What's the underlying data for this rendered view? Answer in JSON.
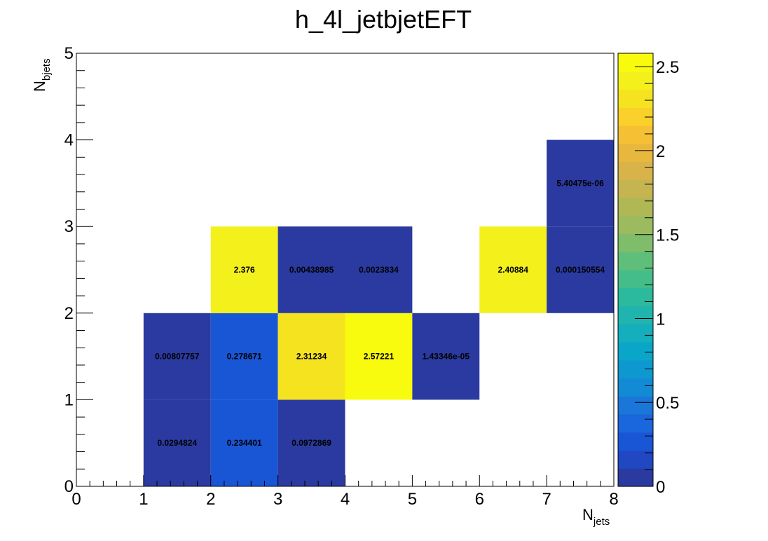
{
  "chart_data": {
    "type": "heatmap",
    "title": "h_4l_jetbjetEFT",
    "xlabel": "N",
    "xlabel_sub": "jets",
    "ylabel": "N",
    "ylabel_sub": "bjets",
    "xlim": [
      0,
      8
    ],
    "ylim": [
      0,
      5
    ],
    "x_ticks": [
      "0",
      "1",
      "2",
      "3",
      "4",
      "5",
      "6",
      "7",
      "8"
    ],
    "y_ticks": [
      "0",
      "1",
      "2",
      "3",
      "4",
      "5"
    ],
    "zlim": [
      0,
      2.58
    ],
    "z_ticks": [
      "0",
      "0.5",
      "1",
      "1.5",
      "2",
      "2.5"
    ],
    "colormap": "parula",
    "cells": [
      {
        "x": 1,
        "y": 0,
        "value": 0.0294824,
        "label": "0.0294824"
      },
      {
        "x": 2,
        "y": 0,
        "value": 0.234401,
        "label": "0.234401"
      },
      {
        "x": 3,
        "y": 0,
        "value": 0.0972869,
        "label": "0.0972869"
      },
      {
        "x": 1,
        "y": 1,
        "value": 0.00807757,
        "label": "0.00807757"
      },
      {
        "x": 2,
        "y": 1,
        "value": 0.278671,
        "label": "0.278671"
      },
      {
        "x": 3,
        "y": 1,
        "value": 2.31234,
        "label": "2.31234"
      },
      {
        "x": 4,
        "y": 1,
        "value": 2.57221,
        "label": "2.57221"
      },
      {
        "x": 5,
        "y": 1,
        "value": 1.43346e-05,
        "label": "1.43346e-05"
      },
      {
        "x": 2,
        "y": 2,
        "value": 2.376,
        "label": "2.376"
      },
      {
        "x": 3,
        "y": 2,
        "value": 0.00438985,
        "label": "0.00438985"
      },
      {
        "x": 4,
        "y": 2,
        "value": 0.0023834,
        "label": "0.0023834"
      },
      {
        "x": 6,
        "y": 2,
        "value": 2.40884,
        "label": "2.40884"
      },
      {
        "x": 7,
        "y": 2,
        "value": 0.000150554,
        "label": "0.000150554"
      },
      {
        "x": 7,
        "y": 3,
        "value": 5.40475e-06,
        "label": "5.40475e-06"
      }
    ],
    "palette": [
      "#2a3aa0",
      "#1f48c2",
      "#1956d6",
      "#1a66dc",
      "#1a76d8",
      "#138bd4",
      "#0d99cf",
      "#0aa6c8",
      "#14aebc",
      "#1fb5ae",
      "#2bba9d",
      "#44bd8a",
      "#5fbe79",
      "#7fbd6b",
      "#9bbb5e",
      "#b0b856",
      "#c5b551",
      "#d7b34a",
      "#e8b73e",
      "#f5c033",
      "#f9d12a",
      "#f6e320",
      "#f4f01c",
      "#f9fb0e"
    ]
  }
}
